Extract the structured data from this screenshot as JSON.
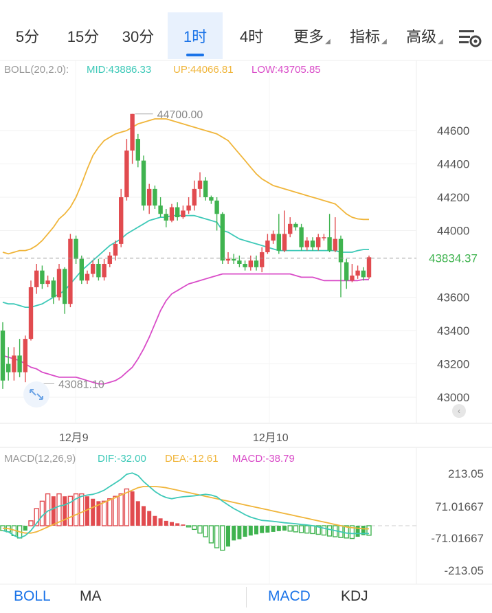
{
  "tabs": [
    {
      "label": "5分",
      "active": false,
      "dropdown": false
    },
    {
      "label": "15分",
      "active": false,
      "dropdown": false
    },
    {
      "label": "30分",
      "active": false,
      "dropdown": false
    },
    {
      "label": "1时",
      "active": true,
      "dropdown": false
    },
    {
      "label": "4时",
      "active": false,
      "dropdown": false
    },
    {
      "label": "更多",
      "active": false,
      "dropdown": true
    },
    {
      "label": "指标",
      "active": false,
      "dropdown": true
    },
    {
      "label": "高级",
      "active": false,
      "dropdown": true
    }
  ],
  "settings_icon": "chart-settings-icon",
  "boll_legend": {
    "name": "BOLL(20,2.0):",
    "mid": "MID:43886.33",
    "up": "UP:44066.81",
    "low": "LOW:43705.85"
  },
  "macd_legend": {
    "name": "MACD(12,26,9)",
    "dif": "DIF:-32.00",
    "dea": "DEA:-12.61",
    "macd": "MACD:-38.79"
  },
  "price_axis": [
    "44600",
    "44400",
    "44200",
    "44000",
    "43600",
    "43400",
    "43200",
    "43000"
  ],
  "current_price": "43834.37",
  "high_marker": "44700.00",
  "low_marker": "43081.10",
  "date_labels": [
    "12月9",
    "12月10"
  ],
  "macd_axis": [
    "213.05",
    "71.01667",
    "-71.01667",
    "-213.05"
  ],
  "bottom_tabs": [
    "BOLL",
    "MA",
    "MACD",
    "KDJ"
  ],
  "colors": {
    "up": "#e14b4f",
    "down": "#3fb34f",
    "mid": "#3ec9b8",
    "upper": "#f0b53a",
    "lower": "#d94cc8",
    "accent": "#1a73e8"
  },
  "chart_data": [
    {
      "type": "candlestick",
      "x": [
        "12月9",
        "12月10"
      ],
      "price_range": [
        42900,
        44750
      ],
      "ticks": [
        43000,
        43200,
        43400,
        43600,
        44000,
        44200,
        44400,
        44600
      ],
      "last_price": 43834.37,
      "candles": [
        [
          43400,
          43100,
          43450,
          43050
        ],
        [
          43200,
          43150,
          43300,
          43100
        ],
        [
          43150,
          43250,
          43300,
          43100
        ],
        [
          43250,
          43150,
          43350,
          43120
        ],
        [
          43150,
          43350,
          43370,
          43090
        ],
        [
          43350,
          43660,
          43700,
          43340
        ],
        [
          43660,
          43760,
          43800,
          43620
        ],
        [
          43760,
          43680,
          43790,
          43650
        ],
        [
          43680,
          43700,
          43730,
          43660
        ],
        [
          43700,
          43600,
          43720,
          43560
        ],
        [
          43600,
          43770,
          43800,
          43580
        ],
        [
          43770,
          43560,
          43780,
          43500
        ],
        [
          43560,
          43950,
          43980,
          43540
        ],
        [
          43950,
          43830,
          43970,
          43800
        ],
        [
          43830,
          43700,
          43850,
          43680
        ],
        [
          43700,
          43740,
          43760,
          43680
        ],
        [
          43740,
          43800,
          43820,
          43720
        ],
        [
          43800,
          43720,
          43830,
          43700
        ],
        [
          43720,
          43800,
          43830,
          43700
        ],
        [
          43800,
          43850,
          43870,
          43780
        ],
        [
          43850,
          43920,
          43940,
          43820
        ],
        [
          43920,
          44200,
          44250,
          43900
        ],
        [
          44200,
          44480,
          44550,
          44180
        ],
        [
          44480,
          44700,
          44700,
          44400
        ],
        [
          44550,
          44420,
          44580,
          44380
        ],
        [
          44420,
          44150,
          44450,
          44120
        ],
        [
          44150,
          44250,
          44280,
          44100
        ],
        [
          44250,
          44150,
          44270,
          44130
        ],
        [
          44150,
          44100,
          44200,
          44080
        ],
        [
          44100,
          44060,
          44130,
          44020
        ],
        [
          44060,
          44140,
          44160,
          44050
        ],
        [
          44140,
          44080,
          44170,
          44060
        ],
        [
          44080,
          44120,
          44150,
          44070
        ],
        [
          44120,
          44150,
          44200,
          44100
        ],
        [
          44150,
          44250,
          44300,
          44120
        ],
        [
          44250,
          44300,
          44350,
          44200
        ],
        [
          44300,
          44200,
          44320,
          44180
        ],
        [
          44200,
          44180,
          44210,
          44160
        ],
        [
          44180,
          44100,
          44200,
          44000
        ],
        [
          44100,
          43820,
          44110,
          43800
        ],
        [
          43820,
          43830,
          43870,
          43800
        ],
        [
          43830,
          43820,
          43860,
          43800
        ],
        [
          43820,
          43800,
          43850,
          43780
        ],
        [
          43800,
          43780,
          43820,
          43760
        ],
        [
          43780,
          43820,
          43850,
          43760
        ],
        [
          43820,
          43780,
          43850,
          43760
        ],
        [
          43780,
          43870,
          43900,
          43750
        ],
        [
          43870,
          43940,
          43980,
          43860
        ],
        [
          43940,
          43980,
          44000,
          43920
        ],
        [
          43980,
          43880,
          44100,
          43860
        ],
        [
          43880,
          43980,
          44120,
          43870
        ],
        [
          43980,
          44040,
          44080,
          43960
        ],
        [
          44040,
          44020,
          44050,
          44000
        ],
        [
          44020,
          43900,
          44040,
          43880
        ],
        [
          43900,
          43940,
          43960,
          43880
        ],
        [
          43940,
          43900,
          43960,
          43880
        ],
        [
          43900,
          43960,
          43980,
          43880
        ],
        [
          43960,
          43960,
          43980,
          43940
        ],
        [
          43960,
          43880,
          44100,
          43870
        ],
        [
          43880,
          43950,
          44080,
          43870
        ],
        [
          43950,
          43810,
          43970,
          43600
        ],
        [
          43810,
          43700,
          43830,
          43650
        ],
        [
          43700,
          43730,
          43800,
          43690
        ],
        [
          43730,
          43760,
          43790,
          43710
        ],
        [
          43760,
          43720,
          43780,
          43700
        ],
        [
          43720,
          43840,
          43850,
          43710
        ]
      ],
      "mid_line": [
        43570,
        43560,
        43560,
        43550,
        43540,
        43540,
        43550,
        43560,
        43580,
        43600,
        43620,
        43640,
        43680,
        43720,
        43760,
        43790,
        43820,
        43850,
        43880,
        43910,
        43930,
        43950,
        43980,
        44000,
        44020,
        44040,
        44060,
        44070,
        44080,
        44080,
        44090,
        44090,
        44090,
        44090,
        44090,
        44080,
        44070,
        44060,
        44050,
        44000,
        43990,
        43970,
        43950,
        43940,
        43930,
        43920,
        43910,
        43900,
        43890,
        43880,
        43880,
        43880,
        43880,
        43880,
        43880,
        43880,
        43880,
        43880,
        43880,
        43880,
        43870,
        43870,
        43870,
        43880,
        43886.33,
        43886.33
      ],
      "upper_line": [
        43870,
        43860,
        43870,
        43880,
        43880,
        43890,
        43910,
        43940,
        43980,
        44020,
        44070,
        44100,
        44140,
        44200,
        44280,
        44370,
        44450,
        44500,
        44540,
        44560,
        44580,
        44590,
        44600,
        44620,
        44640,
        44650,
        44660,
        44670,
        44670,
        44670,
        44660,
        44650,
        44640,
        44630,
        44620,
        44610,
        44600,
        44590,
        44580,
        44560,
        44540,
        44500,
        44460,
        44420,
        44380,
        44340,
        44310,
        44290,
        44270,
        44260,
        44250,
        44240,
        44230,
        44220,
        44210,
        44200,
        44190,
        44180,
        44170,
        44160,
        44130,
        44100,
        44080,
        44070,
        44066.81,
        44066.81
      ],
      "lower_line": [
        43250,
        43240,
        43230,
        43220,
        43200,
        43180,
        43170,
        43150,
        43140,
        43130,
        43120,
        43120,
        43120,
        43120,
        43110,
        43100,
        43090,
        43080,
        43080,
        43090,
        43100,
        43120,
        43150,
        43180,
        43230,
        43290,
        43360,
        43440,
        43520,
        43580,
        43620,
        43640,
        43660,
        43680,
        43690,
        43700,
        43710,
        43720,
        43730,
        43740,
        43740,
        43740,
        43740,
        43740,
        43740,
        43740,
        43740,
        43740,
        43740,
        43740,
        43740,
        43740,
        43730,
        43720,
        43720,
        43720,
        43710,
        43700,
        43700,
        43700,
        43700,
        43700,
        43700,
        43700,
        43705.85,
        43705.85
      ],
      "macd_range": [
        -213.05,
        213.05
      ],
      "macd_ticks": [
        213.05,
        71.01667,
        -71.01667,
        -213.05
      ],
      "dif": [
        -20,
        -25,
        -40,
        -50,
        -40,
        -20,
        10,
        40,
        60,
        70,
        80,
        85,
        95,
        110,
        120,
        125,
        128,
        135,
        145,
        160,
        175,
        190,
        210,
        215,
        205,
        180,
        160,
        140,
        125,
        115,
        110,
        115,
        118,
        120,
        122,
        125,
        128,
        125,
        118,
        100,
        85,
        70,
        58,
        45,
        35,
        28,
        22,
        20,
        18,
        15,
        12,
        10,
        8,
        5,
        3,
        0,
        -5,
        -10,
        -15,
        -20,
        -25,
        -30,
        -32,
        -32,
        -32,
        -32
      ],
      "dea": [
        -10,
        -12,
        -18,
        -25,
        -30,
        -30,
        -25,
        -15,
        -5,
        5,
        15,
        25,
        35,
        45,
        55,
        65,
        75,
        85,
        95,
        105,
        115,
        125,
        135,
        145,
        155,
        160,
        160,
        160,
        158,
        155,
        150,
        145,
        140,
        135,
        130,
        125,
        120,
        115,
        110,
        105,
        100,
        95,
        90,
        85,
        80,
        75,
        70,
        65,
        60,
        55,
        50,
        45,
        40,
        35,
        30,
        25,
        20,
        15,
        10,
        5,
        0,
        -5,
        -8,
        -10,
        -12.61,
        -12.61
      ],
      "macd_hist": [
        -20,
        -25,
        -40,
        -50,
        -20,
        20,
        70,
        100,
        130,
        120,
        130,
        120,
        120,
        130,
        130,
        120,
        110,
        100,
        100,
        110,
        120,
        130,
        150,
        140,
        100,
        80,
        60,
        40,
        30,
        20,
        15,
        10,
        5,
        -5,
        -15,
        -30,
        -45,
        -70,
        -90,
        -100,
        -85,
        -60,
        -55,
        -45,
        -40,
        -35,
        -30,
        -28,
        -25,
        -22,
        -20,
        -22,
        -25,
        -28,
        -30,
        -32,
        -35,
        -38,
        -42,
        -45,
        -48,
        -50,
        -52,
        -45,
        -38.79,
        -38.79
      ]
    }
  ]
}
